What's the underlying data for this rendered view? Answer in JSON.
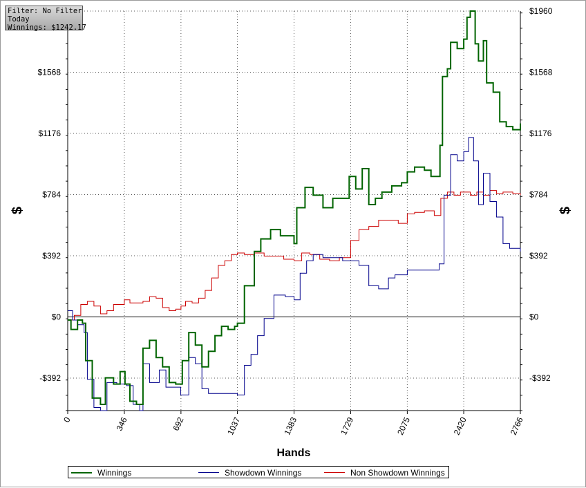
{
  "info_box": {
    "filter": "Filter: No Filter",
    "period": "Today",
    "winnings": "Winnings: $1242.17"
  },
  "chart_data": {
    "type": "line",
    "xlabel": "Hands",
    "ylabel": "$",
    "xlim": [
      0,
      2766
    ],
    "ylim": [
      -600,
      1960
    ],
    "x_ticks": [
      0,
      346,
      692,
      1037,
      1383,
      1729,
      2075,
      2420,
      2766
    ],
    "y_ticks": [
      -392,
      0,
      392,
      784,
      1176,
      1568,
      1960
    ],
    "y_tick_labels": [
      "-$392",
      "$0",
      "$392",
      "$784",
      "$1176",
      "$1568",
      "$1960"
    ],
    "grid": true,
    "legend_position": "bottom",
    "series": [
      {
        "name": "Winnings",
        "color": "#006400",
        "points": [
          [
            0,
            -20
          ],
          [
            20,
            -80
          ],
          [
            60,
            -20
          ],
          [
            90,
            -40
          ],
          [
            110,
            -280
          ],
          [
            150,
            -520
          ],
          [
            200,
            -560
          ],
          [
            230,
            -390
          ],
          [
            280,
            -430
          ],
          [
            320,
            -350
          ],
          [
            350,
            -430
          ],
          [
            380,
            -540
          ],
          [
            420,
            -560
          ],
          [
            460,
            -200
          ],
          [
            500,
            -150
          ],
          [
            540,
            -260
          ],
          [
            580,
            -320
          ],
          [
            620,
            -420
          ],
          [
            660,
            -430
          ],
          [
            700,
            -280
          ],
          [
            740,
            -100
          ],
          [
            780,
            -180
          ],
          [
            820,
            -320
          ],
          [
            860,
            -220
          ],
          [
            900,
            -120
          ],
          [
            940,
            -60
          ],
          [
            980,
            -80
          ],
          [
            1020,
            -60
          ],
          [
            1037,
            -40
          ],
          [
            1080,
            200
          ],
          [
            1140,
            420
          ],
          [
            1180,
            500
          ],
          [
            1240,
            560
          ],
          [
            1300,
            520
          ],
          [
            1383,
            470
          ],
          [
            1400,
            700
          ],
          [
            1450,
            830
          ],
          [
            1500,
            780
          ],
          [
            1560,
            700
          ],
          [
            1620,
            760
          ],
          [
            1680,
            760
          ],
          [
            1720,
            900
          ],
          [
            1760,
            820
          ],
          [
            1800,
            950
          ],
          [
            1840,
            720
          ],
          [
            1880,
            760
          ],
          [
            1920,
            800
          ],
          [
            1980,
            840
          ],
          [
            2040,
            860
          ],
          [
            2075,
            930
          ],
          [
            2120,
            960
          ],
          [
            2180,
            940
          ],
          [
            2220,
            900
          ],
          [
            2275,
            1100
          ],
          [
            2290,
            1540
          ],
          [
            2320,
            1590
          ],
          [
            2340,
            1760
          ],
          [
            2380,
            1720
          ],
          [
            2420,
            1780
          ],
          [
            2440,
            1920
          ],
          [
            2460,
            1960
          ],
          [
            2490,
            1750
          ],
          [
            2510,
            1640
          ],
          [
            2540,
            1770
          ],
          [
            2560,
            1500
          ],
          [
            2600,
            1440
          ],
          [
            2640,
            1250
          ],
          [
            2680,
            1220
          ],
          [
            2720,
            1200
          ],
          [
            2766,
            1240
          ]
        ]
      },
      {
        "name": "Showdown Winnings",
        "color": "#00008b",
        "points": [
          [
            0,
            40
          ],
          [
            30,
            -20
          ],
          [
            60,
            -50
          ],
          [
            100,
            -100
          ],
          [
            120,
            -400
          ],
          [
            160,
            -580
          ],
          [
            200,
            -600
          ],
          [
            240,
            -420
          ],
          [
            300,
            -430
          ],
          [
            360,
            -440
          ],
          [
            400,
            -560
          ],
          [
            440,
            -600
          ],
          [
            460,
            -300
          ],
          [
            500,
            -420
          ],
          [
            560,
            -340
          ],
          [
            600,
            -450
          ],
          [
            640,
            -450
          ],
          [
            690,
            -500
          ],
          [
            740,
            -260
          ],
          [
            780,
            -300
          ],
          [
            820,
            -460
          ],
          [
            860,
            -490
          ],
          [
            900,
            -490
          ],
          [
            960,
            -490
          ],
          [
            1000,
            -490
          ],
          [
            1037,
            -500
          ],
          [
            1080,
            -310
          ],
          [
            1120,
            -240
          ],
          [
            1160,
            -120
          ],
          [
            1200,
            -10
          ],
          [
            1260,
            140
          ],
          [
            1330,
            130
          ],
          [
            1383,
            110
          ],
          [
            1420,
            280
          ],
          [
            1460,
            360
          ],
          [
            1500,
            400
          ],
          [
            1560,
            380
          ],
          [
            1620,
            380
          ],
          [
            1680,
            360
          ],
          [
            1729,
            360
          ],
          [
            1780,
            330
          ],
          [
            1840,
            200
          ],
          [
            1900,
            180
          ],
          [
            1960,
            250
          ],
          [
            2000,
            270
          ],
          [
            2075,
            300
          ],
          [
            2150,
            300
          ],
          [
            2220,
            300
          ],
          [
            2270,
            340
          ],
          [
            2300,
            780
          ],
          [
            2340,
            1040
          ],
          [
            2380,
            1000
          ],
          [
            2420,
            1060
          ],
          [
            2450,
            1150
          ],
          [
            2480,
            1000
          ],
          [
            2510,
            720
          ],
          [
            2540,
            920
          ],
          [
            2580,
            740
          ],
          [
            2620,
            640
          ],
          [
            2660,
            470
          ],
          [
            2700,
            440
          ],
          [
            2740,
            440
          ],
          [
            2766,
            420
          ]
        ]
      },
      {
        "name": "Non Showdown Winnings",
        "color": "#cc0000",
        "points": [
          [
            0,
            -20
          ],
          [
            40,
            10
          ],
          [
            80,
            80
          ],
          [
            120,
            100
          ],
          [
            160,
            70
          ],
          [
            200,
            20
          ],
          [
            240,
            40
          ],
          [
            280,
            80
          ],
          [
            346,
            110
          ],
          [
            380,
            90
          ],
          [
            420,
            90
          ],
          [
            460,
            100
          ],
          [
            500,
            130
          ],
          [
            540,
            120
          ],
          [
            580,
            60
          ],
          [
            620,
            40
          ],
          [
            660,
            50
          ],
          [
            692,
            70
          ],
          [
            720,
            100
          ],
          [
            760,
            90
          ],
          [
            800,
            120
          ],
          [
            840,
            170
          ],
          [
            880,
            250
          ],
          [
            920,
            330
          ],
          [
            960,
            360
          ],
          [
            1000,
            400
          ],
          [
            1037,
            410
          ],
          [
            1080,
            400
          ],
          [
            1140,
            410
          ],
          [
            1200,
            390
          ],
          [
            1260,
            390
          ],
          [
            1320,
            370
          ],
          [
            1383,
            360
          ],
          [
            1430,
            410
          ],
          [
            1480,
            400
          ],
          [
            1540,
            370
          ],
          [
            1600,
            360
          ],
          [
            1660,
            380
          ],
          [
            1729,
            490
          ],
          [
            1780,
            560
          ],
          [
            1840,
            580
          ],
          [
            1900,
            620
          ],
          [
            1960,
            620
          ],
          [
            2020,
            600
          ],
          [
            2075,
            660
          ],
          [
            2120,
            670
          ],
          [
            2180,
            680
          ],
          [
            2240,
            650
          ],
          [
            2280,
            760
          ],
          [
            2320,
            800
          ],
          [
            2360,
            780
          ],
          [
            2400,
            800
          ],
          [
            2420,
            800
          ],
          [
            2460,
            780
          ],
          [
            2500,
            800
          ],
          [
            2540,
            780
          ],
          [
            2580,
            810
          ],
          [
            2620,
            790
          ],
          [
            2660,
            800
          ],
          [
            2720,
            790
          ],
          [
            2766,
            780
          ]
        ]
      }
    ]
  }
}
